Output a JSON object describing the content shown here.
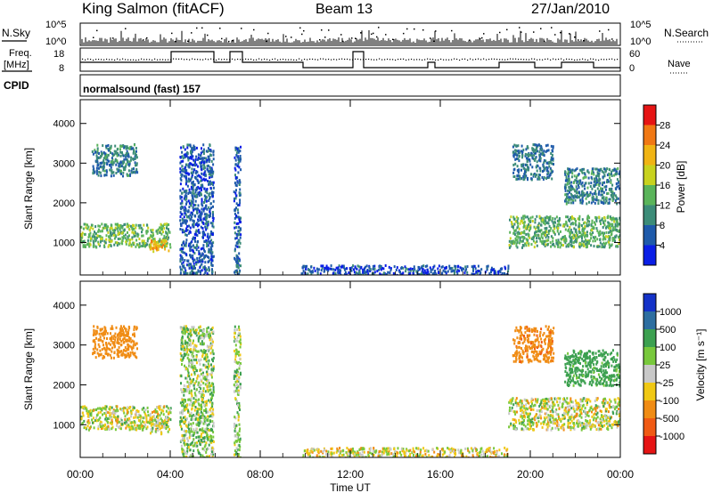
{
  "header": {
    "station": "King Salmon (fitACF)",
    "beam": "Beam 13",
    "date": "27/Jan/2010"
  },
  "nsky_panel": {
    "left_label": "N.Sky",
    "right_label": "N.Search",
    "ticks_left": [
      "10^5",
      "10^0"
    ],
    "ticks_right": [
      "10^5",
      "10^0"
    ]
  },
  "freq_panel": {
    "left_label_1": "Freq.",
    "left_label_2": "[MHz]",
    "right_label": "Nave",
    "ticks_left": [
      "18",
      "8"
    ],
    "ticks_right": [
      "60",
      "0"
    ]
  },
  "cpid": {
    "label": "CPID",
    "program": "normalsound (fast) 157"
  },
  "power_panel": {
    "ylabel": "Slant Range [km]",
    "yticks": [
      "1000",
      "2000",
      "3000",
      "4000"
    ],
    "colorbar_label": "Power [dB]",
    "colorbar_ticks": [
      "28",
      "24",
      "20",
      "16",
      "12",
      "8",
      "4"
    ],
    "colors": [
      "#0a1ee6",
      "#1e5aaa",
      "#3c8c78",
      "#5ab45a",
      "#c8d21e",
      "#f0b414",
      "#f07814",
      "#e61414"
    ]
  },
  "velocity_panel": {
    "ylabel": "Slant Range [km]",
    "yticks": [
      "1000",
      "2000",
      "3000",
      "4000"
    ],
    "colorbar_label": "Velocity [m s⁻¹]",
    "colorbar_ticks": [
      "1000",
      "500",
      "100",
      "25",
      "-25",
      "-100",
      "-500",
      "-1000"
    ],
    "colors": [
      "#1432c8",
      "#2d6ea0",
      "#3ca050",
      "#78c83c",
      "#c8c8c8",
      "#f0c814",
      "#f08c14",
      "#f05a14",
      "#e61414"
    ]
  },
  "x_axis": {
    "ticks": [
      "00:00",
      "04:00",
      "08:00",
      "12:00",
      "16:00",
      "20:00",
      "00:00"
    ],
    "label": "Time UT"
  },
  "chart_data": {
    "type": "heatmap",
    "x_range_hours": [
      0,
      24
    ],
    "y_range_km": [
      180,
      4600
    ],
    "echo_regions": [
      {
        "t0": 0.0,
        "t1": 4.0,
        "r0": 900,
        "r1": 1500,
        "power_db": 14,
        "velocity": 0
      },
      {
        "t0": 0.5,
        "t1": 2.5,
        "r0": 2700,
        "r1": 3500,
        "power_db": 9,
        "velocity": -300
      },
      {
        "t0": 3.0,
        "t1": 3.9,
        "r0": 800,
        "r1": 1100,
        "power_db": 22,
        "velocity": 0
      },
      {
        "t0": 4.4,
        "t1": 5.9,
        "r0": 200,
        "r1": 3500,
        "power_db": 6,
        "velocity": 50
      },
      {
        "t0": 6.8,
        "t1": 7.1,
        "r0": 200,
        "r1": 3500,
        "power_db": 6,
        "velocity": 50
      },
      {
        "t0": 9.8,
        "t1": 19.0,
        "r0": 200,
        "r1": 450,
        "power_db": 5,
        "velocity": -30
      },
      {
        "t0": 19.0,
        "t1": 24.0,
        "r0": 900,
        "r1": 1700,
        "power_db": 13,
        "velocity": 0
      },
      {
        "t0": 19.2,
        "t1": 21.0,
        "r0": 2600,
        "r1": 3500,
        "power_db": 8,
        "velocity": -400
      },
      {
        "t0": 21.5,
        "t1": 24.0,
        "r0": 2000,
        "r1": 2900,
        "power_db": 9,
        "velocity": 200
      }
    ]
  }
}
